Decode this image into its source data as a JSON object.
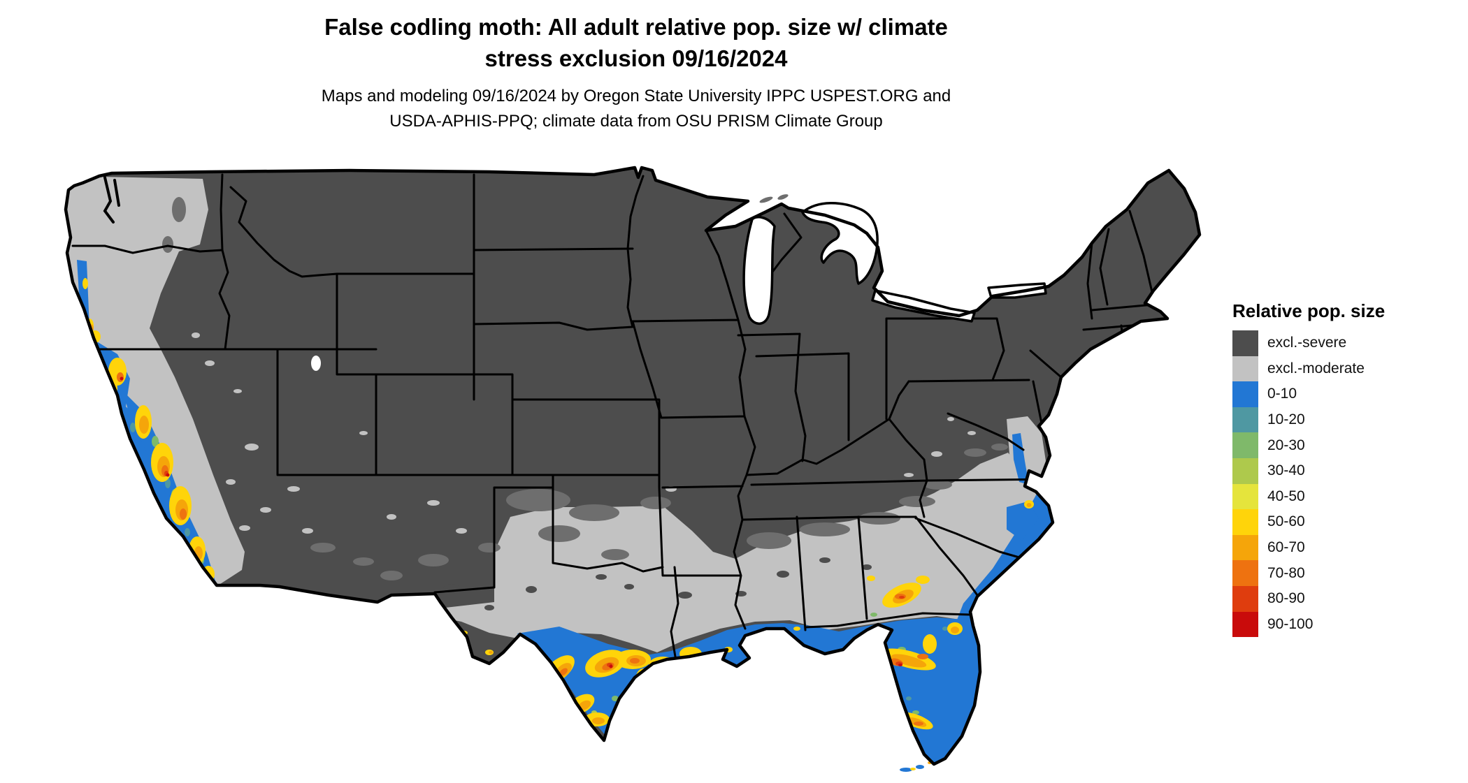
{
  "header": {
    "title_line1": "False codling moth: All adult relative pop. size w/ climate",
    "title_line2": "stress exclusion 09/16/2024",
    "subtitle_line1": "Maps and modeling 09/16/2024 by Oregon State University IPPC USPEST.ORG and",
    "subtitle_line2": "USDA-APHIS-PPQ; climate data from OSU PRISM Climate Group"
  },
  "map": {
    "region": "Conterminous United States",
    "description": "Raster choropleth of false codling moth all-adult relative population size with climate stress exclusion",
    "ocean_color": "#ffffff",
    "boundary_color": "#000000"
  },
  "legend": {
    "title": "Relative pop. size",
    "items": [
      {
        "label": "excl.-severe",
        "color": "#4d4d4d"
      },
      {
        "label": "excl.-moderate",
        "color": "#c2c2c2"
      },
      {
        "label": "0-10",
        "color": "#2277d4"
      },
      {
        "label": "10-20",
        "color": "#4f98a2"
      },
      {
        "label": "20-30",
        "color": "#7fb96a"
      },
      {
        "label": "30-40",
        "color": "#aec94c"
      },
      {
        "label": "40-50",
        "color": "#e5e43c"
      },
      {
        "label": "50-60",
        "color": "#ffd40a"
      },
      {
        "label": "60-70",
        "color": "#f5a50a"
      },
      {
        "label": "70-80",
        "color": "#ee7210"
      },
      {
        "label": "80-90",
        "color": "#df3d0e"
      },
      {
        "label": "90-100",
        "color": "#c90b0b"
      }
    ]
  }
}
